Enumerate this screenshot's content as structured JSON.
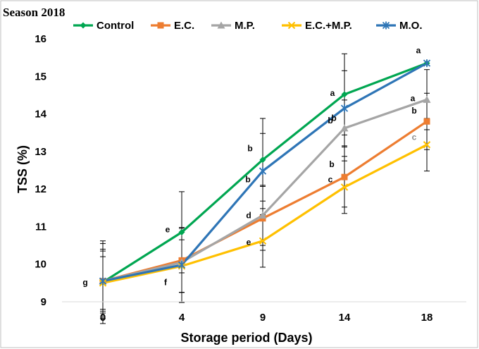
{
  "chart_data": {
    "type": "line",
    "title": "Season 2018",
    "xlabel": "Storage period (Days)",
    "ylabel": "TSS (%)",
    "categories": [
      "0",
      "4",
      "9",
      "14",
      "18"
    ],
    "ylim": [
      9,
      16
    ],
    "yticks": [
      "9",
      "10",
      "11",
      "12",
      "13",
      "14",
      "15",
      "16"
    ],
    "legend_position": "top",
    "grid": false,
    "series": [
      {
        "name": "Control",
        "color": "#00a651",
        "marker": "diamond",
        "values": [
          9.52,
          10.85,
          12.78,
          14.52,
          15.35
        ],
        "errors": [
          1.1,
          1.08,
          1.1,
          1.08,
          0.0
        ],
        "letters": [
          "",
          "e",
          "b",
          "a",
          "a"
        ]
      },
      {
        "name": "E.C.",
        "color": "#ed7d31",
        "marker": "square",
        "values": [
          9.55,
          10.1,
          11.22,
          12.32,
          13.8
        ],
        "errors": [
          0.85,
          0.85,
          0.85,
          0.8,
          0.75
        ],
        "letters": [
          "",
          "",
          "d",
          "b",
          "b"
        ]
      },
      {
        "name": "M.P.",
        "color": "#a5a5a5",
        "marker": "triangle",
        "values": [
          9.55,
          10.05,
          11.3,
          13.62,
          14.38
        ],
        "errors": [
          0.8,
          0.8,
          0.8,
          0.75,
          0.8
        ],
        "letters": [
          "",
          "",
          "",
          "b",
          "a"
        ]
      },
      {
        "name": "E.C.+M.P.",
        "color": "#ffc000",
        "marker": "x",
        "values": [
          9.5,
          9.95,
          10.62,
          12.05,
          13.18
        ],
        "errors": [
          0.7,
          0.7,
          0.7,
          0.7,
          0.7
        ],
        "letters": [
          "",
          "f",
          "e",
          "c",
          "c"
        ]
      },
      {
        "name": "M.O.",
        "color": "#2e75b6",
        "marker": "star",
        "values": [
          9.55,
          9.98,
          12.48,
          14.15,
          15.35
        ],
        "errors": [
          1.0,
          1.0,
          1.0,
          1.0,
          0.0
        ],
        "letters": [
          "g",
          "",
          "b",
          "b",
          ""
        ]
      }
    ]
  }
}
